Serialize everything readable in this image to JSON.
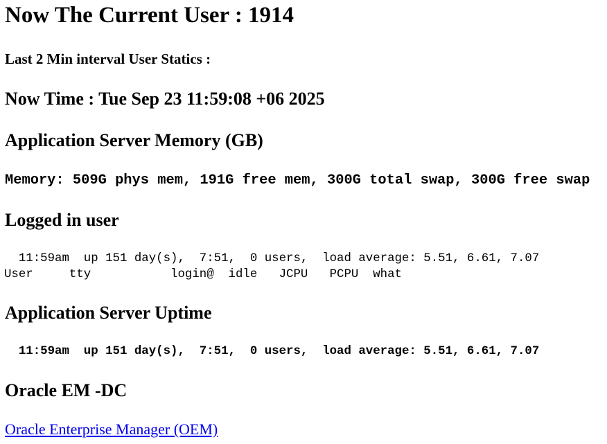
{
  "title": "Now The Current User : 1914",
  "stats_heading": "Last 2 Min interval User Statics :",
  "now_time": "Now Time : Tue Sep 23 11:59:08 +06 2025",
  "memory": {
    "heading": "Application Server Memory (GB)",
    "line": "Memory: 509G phys mem, 191G free mem, 300G total swap, 300G free swap"
  },
  "logged_in": {
    "heading": "Logged in user",
    "line1": "  11:59am  up 151 day(s),  7:51,  0 users,  load average: 5.51, 6.61, 7.07",
    "line2": "User     tty           login@  idle   JCPU   PCPU  what"
  },
  "uptime": {
    "heading": "Application Server Uptime",
    "line": "  11:59am  up 151 day(s),  7:51,  0 users,  load average: 5.51, 6.61, 7.07"
  },
  "oem": {
    "heading": "Oracle EM -DC",
    "link": "Oracle Enterprise Manager (OEM)"
  }
}
